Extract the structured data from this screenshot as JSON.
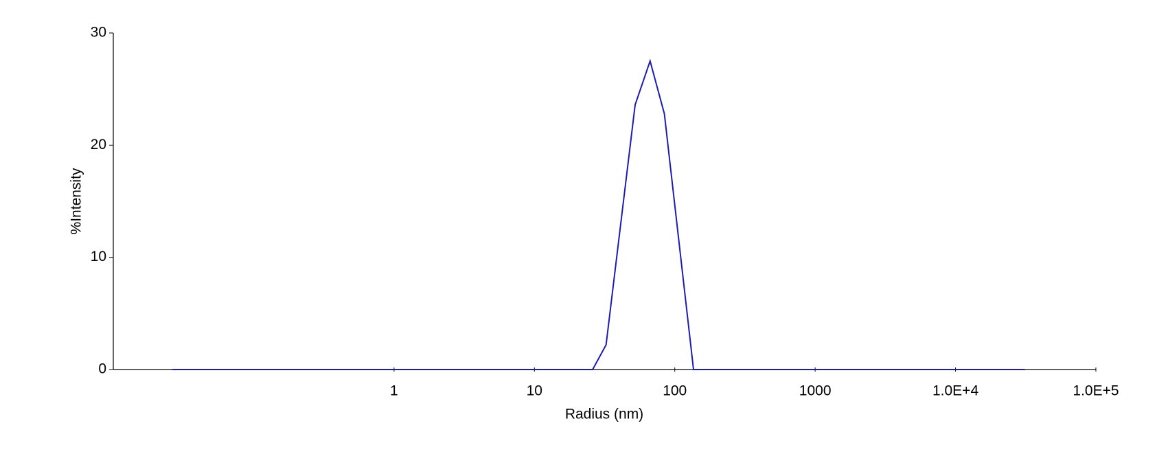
{
  "chart_data": {
    "type": "line",
    "x_label": "Radius (nm)",
    "y_label": "%Intensity",
    "x_scale": "log",
    "xlim": [
      0.01,
      100000
    ],
    "ylim": [
      0,
      30
    ],
    "xticks": [
      1,
      10,
      100,
      1000,
      {
        "value": 10000,
        "label": "1.0E+4"
      },
      {
        "value": 100000,
        "label": "1.0E+5"
      }
    ],
    "yticks": [
      0,
      10,
      20,
      30
    ],
    "x": [
      0.0263,
      26,
      32.4,
      52.2,
      66.7,
      84.3,
      136,
      31260
    ],
    "series": [
      {
        "color": "#1c1cb4",
        "values": [
          0,
          0,
          2.2,
          23.6,
          27.5,
          22.8,
          0,
          0
        ]
      }
    ]
  }
}
